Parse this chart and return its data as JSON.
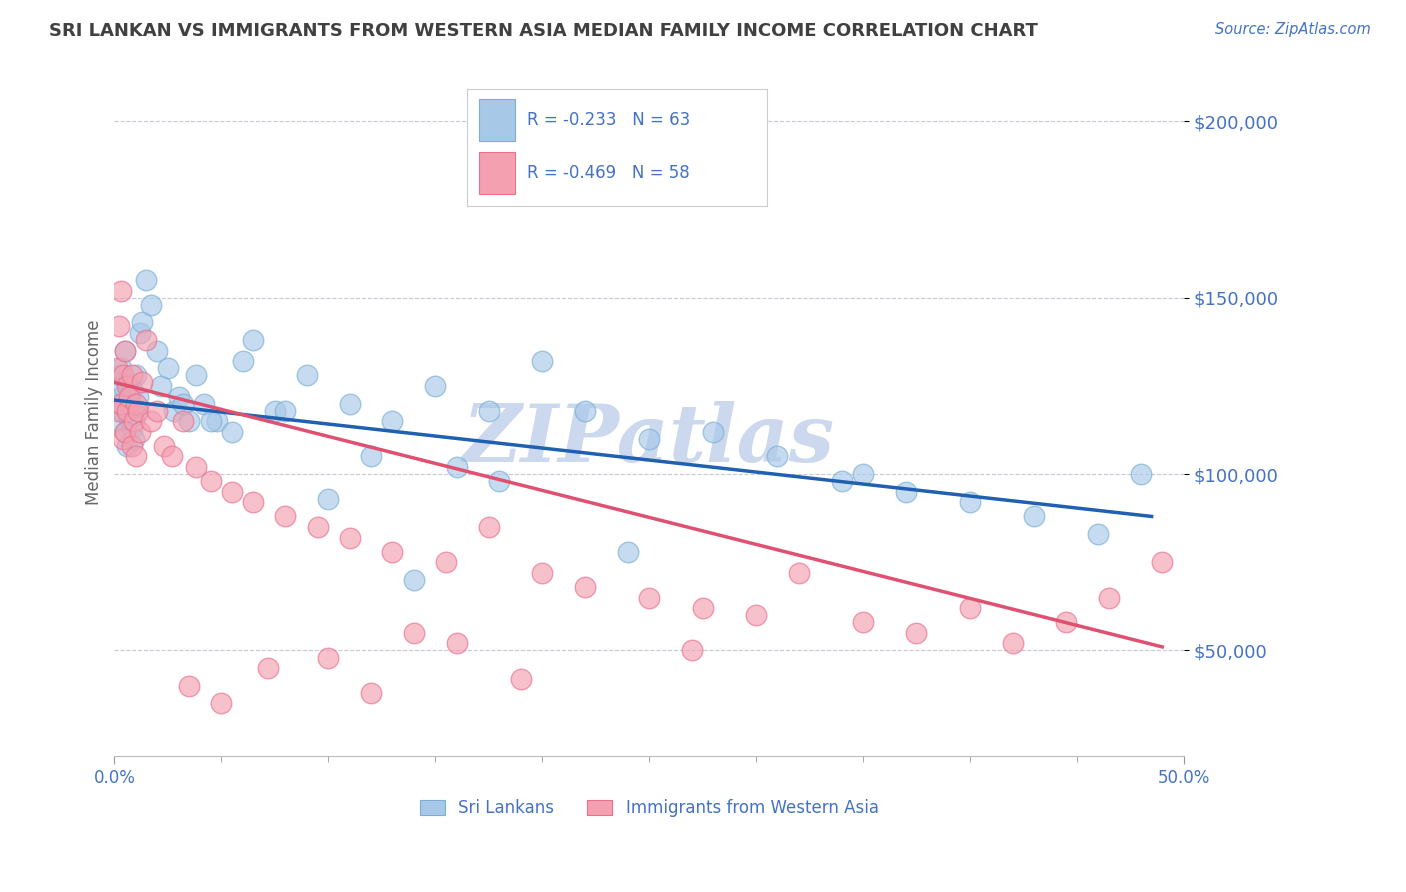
{
  "title": "SRI LANKAN VS IMMIGRANTS FROM WESTERN ASIA MEDIAN FAMILY INCOME CORRELATION CHART",
  "source_text": "Source: ZipAtlas.com",
  "ylabel": "Median Family Income",
  "xlim": [
    0.0,
    0.5
  ],
  "ylim": [
    20000,
    215000
  ],
  "yticks": [
    50000,
    100000,
    150000,
    200000
  ],
  "ytick_labels": [
    "$50,000",
    "$100,000",
    "$150,000",
    "$200,000"
  ],
  "xtick_labels_edge": [
    "0.0%",
    "50.0%"
  ],
  "blue_color": "#a8c8e8",
  "pink_color": "#f4a0b0",
  "blue_edge": "#7aafd4",
  "pink_edge": "#e87090",
  "line_blue": "#2060b0",
  "line_pink": "#e05070",
  "title_color": "#404040",
  "tick_label_color": "#4472c4",
  "grid_color": "#c8c8d8",
  "background_color": "#ffffff",
  "watermark_color": "#ccd8ee",
  "legend_R1": "R = -0.233",
  "legend_N1": "N = 63",
  "legend_R2": "R = -0.469",
  "legend_N2": "N = 58",
  "legend_label1": "Sri Lankans",
  "legend_label2": "Immigrants from Western Asia",
  "sri_lankan_x": [
    0.001,
    0.002,
    0.002,
    0.003,
    0.003,
    0.004,
    0.004,
    0.005,
    0.005,
    0.006,
    0.006,
    0.007,
    0.007,
    0.008,
    0.008,
    0.009,
    0.009,
    0.01,
    0.01,
    0.011,
    0.012,
    0.013,
    0.015,
    0.017,
    0.02,
    0.022,
    0.025,
    0.028,
    0.03,
    0.035,
    0.038,
    0.042,
    0.048,
    0.055,
    0.065,
    0.075,
    0.09,
    0.11,
    0.13,
    0.15,
    0.175,
    0.2,
    0.22,
    0.25,
    0.28,
    0.31,
    0.34,
    0.37,
    0.4,
    0.43,
    0.46,
    0.48,
    0.35,
    0.24,
    0.18,
    0.16,
    0.14,
    0.12,
    0.1,
    0.08,
    0.06,
    0.045,
    0.032
  ],
  "sri_lankan_y": [
    120000,
    128000,
    115000,
    122000,
    130000,
    118000,
    125000,
    112000,
    135000,
    108000,
    126000,
    116000,
    120000,
    113000,
    124000,
    110000,
    119000,
    117000,
    128000,
    122000,
    140000,
    143000,
    155000,
    148000,
    135000,
    125000,
    130000,
    118000,
    122000,
    115000,
    128000,
    120000,
    115000,
    112000,
    138000,
    118000,
    128000,
    120000,
    115000,
    125000,
    118000,
    132000,
    118000,
    110000,
    112000,
    105000,
    98000,
    95000,
    92000,
    88000,
    83000,
    100000,
    100000,
    78000,
    98000,
    102000,
    70000,
    105000,
    93000,
    118000,
    132000,
    115000,
    120000
  ],
  "western_asia_x": [
    0.001,
    0.002,
    0.002,
    0.003,
    0.003,
    0.004,
    0.004,
    0.005,
    0.005,
    0.006,
    0.006,
    0.007,
    0.008,
    0.008,
    0.009,
    0.01,
    0.01,
    0.011,
    0.012,
    0.013,
    0.015,
    0.017,
    0.02,
    0.023,
    0.027,
    0.032,
    0.038,
    0.045,
    0.055,
    0.065,
    0.08,
    0.095,
    0.11,
    0.13,
    0.155,
    0.175,
    0.2,
    0.22,
    0.25,
    0.275,
    0.3,
    0.32,
    0.35,
    0.375,
    0.4,
    0.42,
    0.445,
    0.465,
    0.49,
    0.27,
    0.19,
    0.16,
    0.14,
    0.12,
    0.1,
    0.072,
    0.05,
    0.035
  ],
  "western_asia_y": [
    130000,
    142000,
    118000,
    152000,
    120000,
    128000,
    110000,
    135000,
    112000,
    125000,
    118000,
    122000,
    108000,
    128000,
    115000,
    120000,
    105000,
    118000,
    112000,
    126000,
    138000,
    115000,
    118000,
    108000,
    105000,
    115000,
    102000,
    98000,
    95000,
    92000,
    88000,
    85000,
    82000,
    78000,
    75000,
    85000,
    72000,
    68000,
    65000,
    62000,
    60000,
    72000,
    58000,
    55000,
    62000,
    52000,
    58000,
    65000,
    75000,
    50000,
    42000,
    52000,
    55000,
    38000,
    48000,
    45000,
    35000,
    40000
  ]
}
